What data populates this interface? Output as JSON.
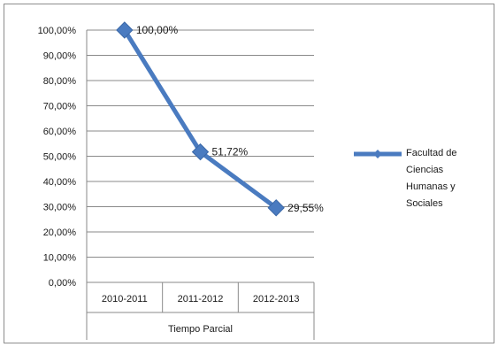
{
  "chart_data": {
    "type": "line",
    "categories": [
      "2010-2011",
      "2011-2012",
      "2012-2013"
    ],
    "series": [
      {
        "name": "Facultad de Ciencias Humanas y Sociales",
        "values": [
          100.0,
          51.72,
          29.55
        ],
        "labels": [
          "100,00%",
          "51,72%",
          "29,55%"
        ],
        "color": "#4a7bc0"
      }
    ],
    "xlabel": "Tiempo Parcial",
    "ylabel": "",
    "ylim": [
      0,
      100
    ],
    "yticks": [
      0,
      10,
      20,
      30,
      40,
      50,
      60,
      70,
      80,
      90,
      100
    ],
    "ytick_labels": [
      "0,00%",
      "10,00%",
      "20,00%",
      "30,00%",
      "40,00%",
      "50,00%",
      "60,00%",
      "70,00%",
      "80,00%",
      "90,00%",
      "100,00%"
    ],
    "grid": true,
    "legend": "right",
    "legend_lines": [
      "Facultad de",
      "Ciencias",
      "Humanas y",
      "Sociales"
    ]
  }
}
